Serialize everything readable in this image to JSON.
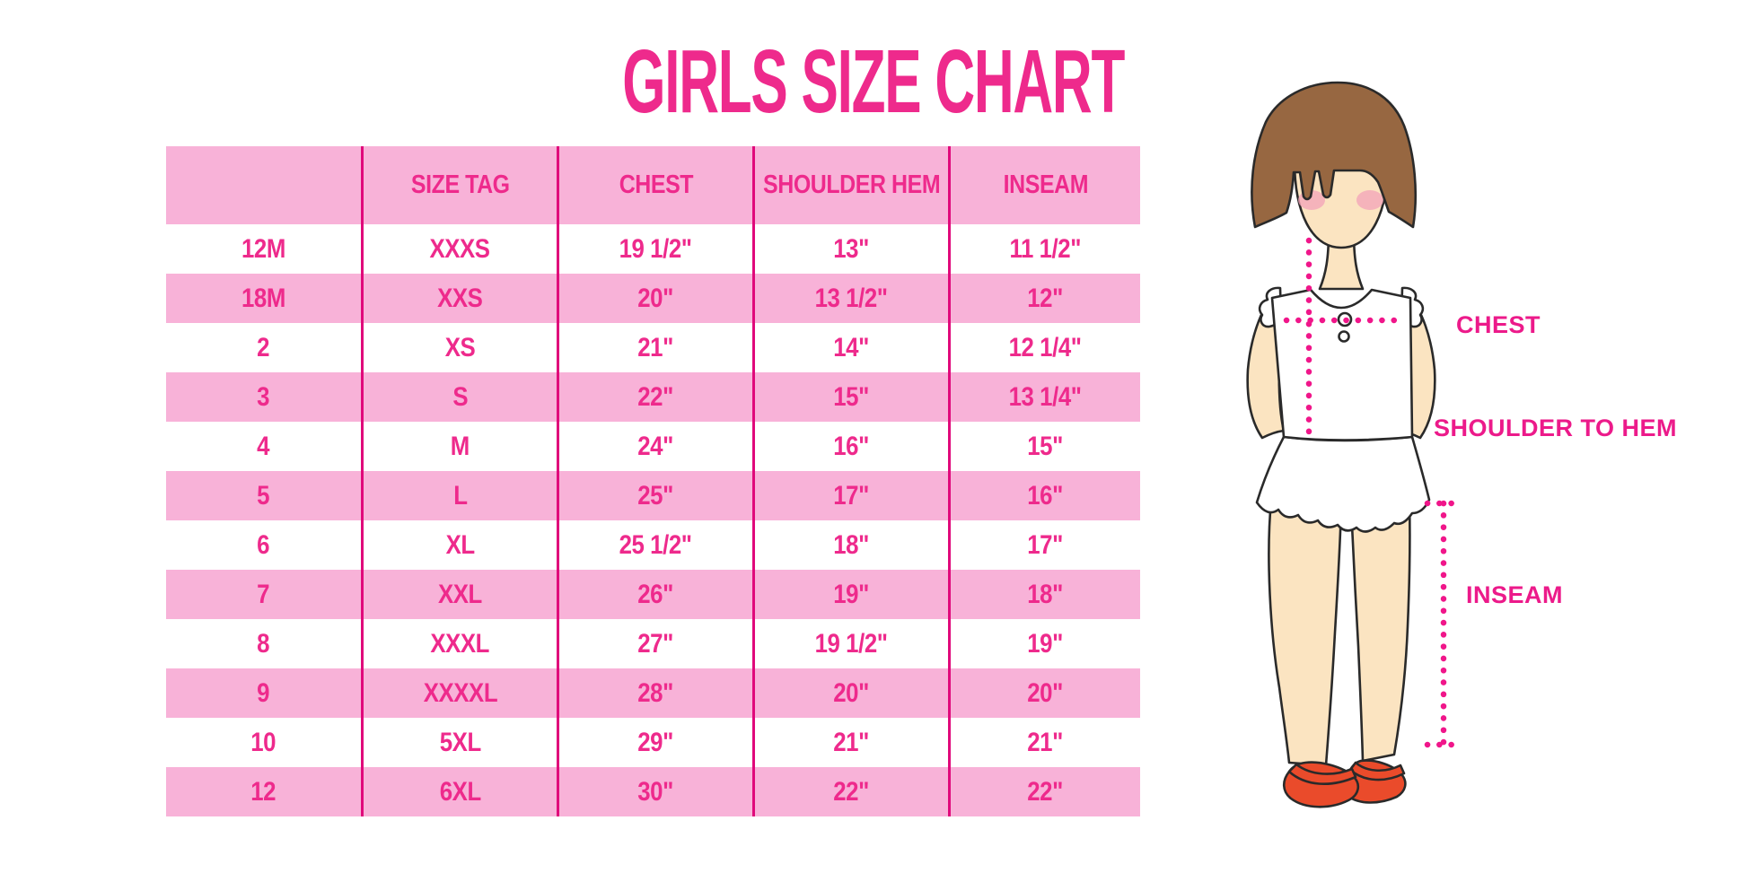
{
  "title": "GIRLS SIZE CHART",
  "chart_data": {
    "type": "table",
    "title": "GIRLS SIZE CHART",
    "columns": [
      "",
      "SIZE TAG",
      "CHEST",
      "SHOULDER HEM",
      "INSEAM"
    ],
    "rows": [
      [
        "12M",
        "XXXS",
        "19 1/2\"",
        "13\"",
        "11 1/2\""
      ],
      [
        "18M",
        "XXS",
        "20\"",
        "13 1/2\"",
        "12\""
      ],
      [
        "2",
        "XS",
        "21\"",
        "14\"",
        "12 1/4\""
      ],
      [
        "3",
        "S",
        "22\"",
        "15\"",
        "13 1/4\""
      ],
      [
        "4",
        "M",
        "24\"",
        "16\"",
        "15\""
      ],
      [
        "5",
        "L",
        "25\"",
        "17\"",
        "16\""
      ],
      [
        "6",
        "XL",
        "25 1/2\"",
        "18\"",
        "17\""
      ],
      [
        "7",
        "XXL",
        "26\"",
        "19\"",
        "18\""
      ],
      [
        "8",
        "XXXL",
        "27\"",
        "19 1/2\"",
        "19\""
      ],
      [
        "9",
        "XXXXL",
        "28\"",
        "20\"",
        "20\""
      ],
      [
        "10",
        "5XL",
        "29\"",
        "21\"",
        "21\""
      ],
      [
        "12",
        "6XL",
        "30\"",
        "22\"",
        "22\""
      ]
    ]
  },
  "diagram": {
    "labels": {
      "chest": "CHEST",
      "shoulder_to_hem": "SHOULDER TO HEM",
      "inseam": "INSEAM"
    }
  },
  "colors": {
    "accent_pink": "#EE2A8C",
    "row_pink": "#F8B2D8",
    "divider_magenta": "#E0097B",
    "dotted_line_pink": "#F0168A",
    "label_pink": "#EC1A8A",
    "hair_brown": "#976741",
    "skin": "#FBE4C1",
    "shoe_red": "#EA4B2B"
  }
}
